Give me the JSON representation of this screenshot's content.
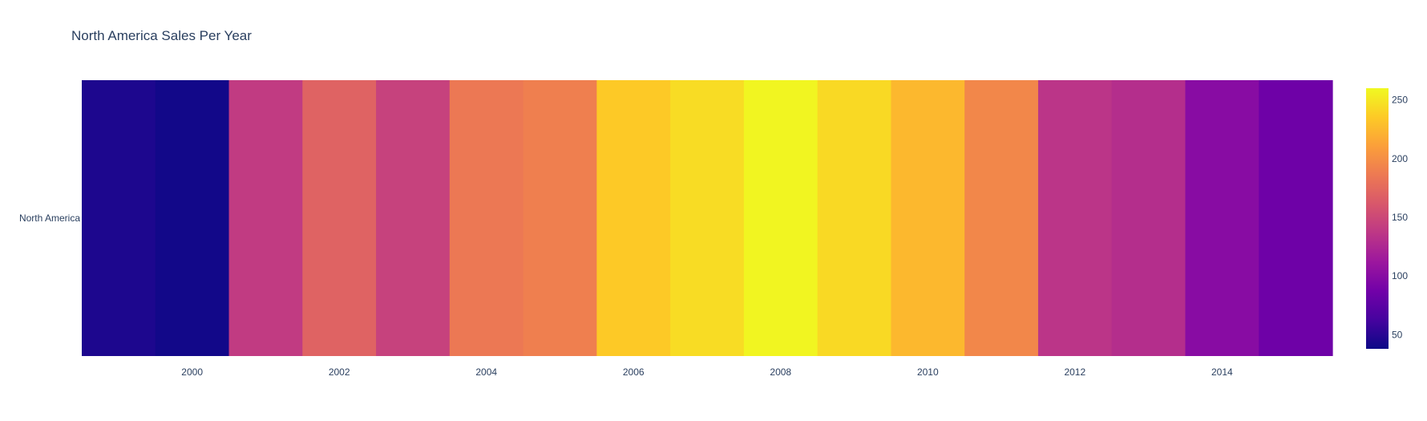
{
  "chart_data": {
    "type": "heatmap",
    "title": "North America Sales Per Year",
    "xlabel": "",
    "ylabel": "",
    "y_categories": [
      "North America"
    ],
    "x": [
      1999,
      2000,
      2001,
      2002,
      2003,
      2004,
      2005,
      2006,
      2007,
      2008,
      2009,
      2010,
      2011,
      2012,
      2013,
      2014,
      2015
    ],
    "values": [
      [
        45,
        40,
        140,
        170,
        145,
        185,
        190,
        235,
        245,
        258,
        243,
        225,
        195,
        135,
        130,
        100,
        85
      ]
    ],
    "x_tick_labels": [
      "2000",
      "2002",
      "2004",
      "2006",
      "2008",
      "2010",
      "2012",
      "2014"
    ],
    "x_tick_values": [
      2000,
      2002,
      2004,
      2006,
      2008,
      2010,
      2012,
      2014
    ],
    "colorscale": {
      "name": "Plasma",
      "zmin": 38,
      "zmax": 260,
      "tick_labels": [
        "50",
        "100",
        "150",
        "200",
        "250"
      ],
      "tick_values": [
        50,
        100,
        150,
        200,
        250
      ],
      "colors": [
        "#0d0887",
        "#46039f",
        "#7201a8",
        "#9c179e",
        "#bd3786",
        "#d8576b",
        "#ed7953",
        "#fb9f3a",
        "#fdca26",
        "#f0f921"
      ]
    },
    "grid": false,
    "legend": "colorbar-right"
  }
}
